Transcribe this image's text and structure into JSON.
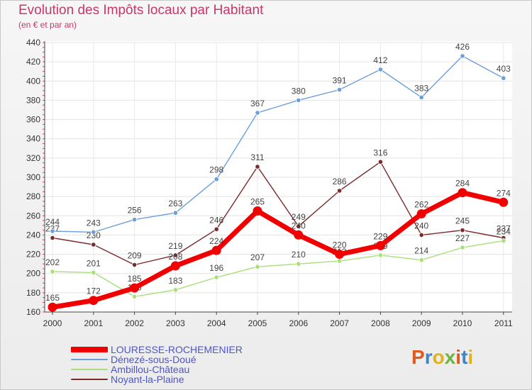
{
  "header": {
    "title": "Evolution des Impôts locaux par Habitant",
    "subtitle": "(en € et par an)"
  },
  "logo": {
    "text": "Proxiti",
    "colors": [
      "#e05a1e",
      "#3f84c8",
      "#e0b21e",
      "#6cb33f",
      "#e05a1e",
      "#3f84c8",
      "#e0b21e"
    ]
  },
  "chart_data": {
    "type": "line",
    "x": [
      "2000",
      "2001",
      "2002",
      "2003",
      "2004",
      "2005",
      "2006",
      "2007",
      "2008",
      "2009",
      "2010",
      "2011"
    ],
    "ylim": [
      160,
      440
    ],
    "yticks": [
      160,
      180,
      200,
      220,
      240,
      260,
      280,
      300,
      320,
      340,
      360,
      380,
      400,
      420,
      440
    ],
    "grid": true,
    "legend_position": "bottom-left",
    "series": [
      {
        "name": "LOURESSE-ROCHEMENIER",
        "color": "#f00000",
        "values": [
          165,
          172,
          185,
          208,
          224,
          265,
          240,
          220,
          229,
          262,
          284,
          274
        ]
      },
      {
        "name": "Dénezé-sous-Doué",
        "color": "#6c9fd8",
        "values": [
          244,
          243,
          256,
          263,
          298,
          367,
          380,
          391,
          412,
          383,
          426,
          403
        ]
      },
      {
        "name": "Ambillou-Château",
        "color": "#a8df78",
        "values": [
          202,
          201,
          176,
          183,
          196,
          207,
          210,
          213,
          219,
          214,
          227,
          234
        ]
      },
      {
        "name": "Noyant-la-Plaine",
        "color": "#7a2a2a",
        "values": [
          237,
          230,
          209,
          219,
          246,
          311,
          249,
          286,
          316,
          240,
          245,
          237
        ]
      }
    ]
  }
}
